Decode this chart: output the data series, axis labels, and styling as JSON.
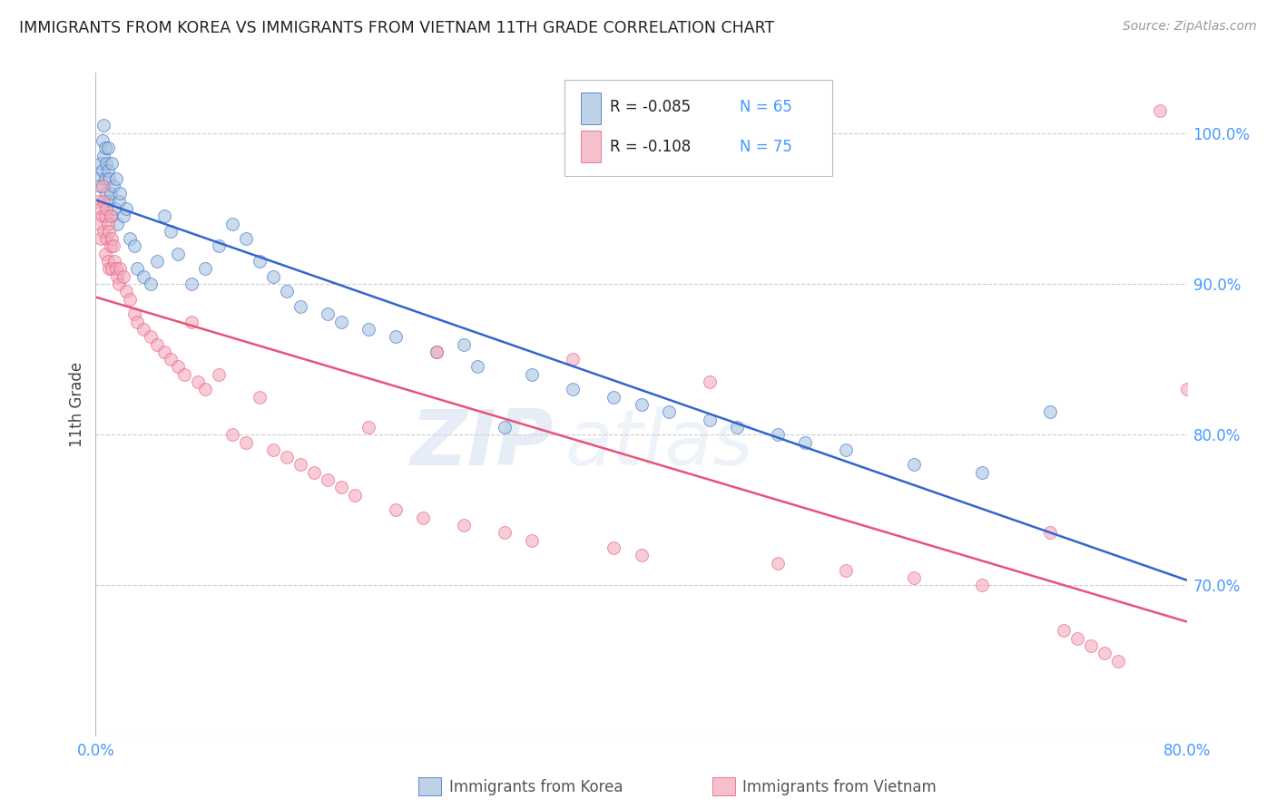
{
  "title": "IMMIGRANTS FROM KOREA VS IMMIGRANTS FROM VIETNAM 11TH GRADE CORRELATION CHART",
  "source": "Source: ZipAtlas.com",
  "ylabel": "11th Grade",
  "xmin": 0.0,
  "xmax": 80.0,
  "ymin": 60.0,
  "ymax": 104.0,
  "yticks": [
    70.0,
    80.0,
    90.0,
    100.0
  ],
  "ytick_labels": [
    "70.0%",
    "80.0%",
    "90.0%",
    "100.0%"
  ],
  "korea_color": "#A8C4E0",
  "vietnam_color": "#F4AABB",
  "korea_R": -0.085,
  "korea_N": 65,
  "vietnam_R": -0.108,
  "vietnam_N": 75,
  "trendline_korea_color": "#3366CC",
  "trendline_vietnam_color": "#E8537A",
  "watermark_zip": "ZIP",
  "watermark_atlas": "atlas",
  "legend_korea": "Immigrants from Korea",
  "legend_vietnam": "Immigrants from Vietnam",
  "korea_x": [
    0.2,
    0.3,
    0.4,
    0.5,
    0.5,
    0.6,
    0.6,
    0.7,
    0.7,
    0.8,
    0.8,
    0.9,
    0.9,
    1.0,
    1.0,
    1.1,
    1.2,
    1.2,
    1.3,
    1.4,
    1.5,
    1.6,
    1.7,
    1.8,
    2.0,
    2.2,
    2.5,
    2.8,
    3.0,
    3.5,
    4.0,
    4.5,
    5.0,
    5.5,
    6.0,
    7.0,
    8.0,
    9.0,
    10.0,
    11.0,
    12.0,
    13.0,
    14.0,
    15.0,
    17.0,
    18.0,
    20.0,
    22.0,
    25.0,
    27.0,
    28.0,
    30.0,
    32.0,
    35.0,
    38.0,
    40.0,
    42.0,
    45.0,
    47.0,
    50.0,
    52.0,
    55.0,
    60.0,
    65.0,
    70.0
  ],
  "korea_y": [
    97.0,
    96.5,
    98.0,
    97.5,
    99.5,
    98.5,
    100.5,
    97.0,
    99.0,
    98.0,
    96.0,
    97.5,
    99.0,
    95.5,
    97.0,
    96.0,
    98.0,
    94.5,
    96.5,
    95.0,
    97.0,
    94.0,
    95.5,
    96.0,
    94.5,
    95.0,
    93.0,
    92.5,
    91.0,
    90.5,
    90.0,
    91.5,
    94.5,
    93.5,
    92.0,
    90.0,
    91.0,
    92.5,
    94.0,
    93.0,
    91.5,
    90.5,
    89.5,
    88.5,
    88.0,
    87.5,
    87.0,
    86.5,
    85.5,
    86.0,
    84.5,
    80.5,
    84.0,
    83.0,
    82.5,
    82.0,
    81.5,
    81.0,
    80.5,
    80.0,
    79.5,
    79.0,
    78.0,
    77.5,
    81.5
  ],
  "vietnam_x": [
    0.2,
    0.3,
    0.4,
    0.4,
    0.5,
    0.5,
    0.6,
    0.6,
    0.7,
    0.7,
    0.8,
    0.8,
    0.9,
    0.9,
    1.0,
    1.0,
    1.1,
    1.1,
    1.2,
    1.2,
    1.3,
    1.4,
    1.5,
    1.6,
    1.7,
    1.8,
    2.0,
    2.2,
    2.5,
    2.8,
    3.0,
    3.5,
    4.0,
    4.5,
    5.0,
    5.5,
    6.0,
    6.5,
    7.0,
    7.5,
    8.0,
    9.0,
    10.0,
    11.0,
    12.0,
    13.0,
    14.0,
    15.0,
    16.0,
    17.0,
    18.0,
    19.0,
    20.0,
    22.0,
    24.0,
    25.0,
    27.0,
    30.0,
    32.0,
    35.0,
    38.0,
    40.0,
    45.0,
    50.0,
    55.0,
    60.0,
    65.0,
    70.0,
    71.0,
    72.0,
    73.0,
    74.0,
    75.0,
    78.0,
    80.0
  ],
  "vietnam_y": [
    95.5,
    94.0,
    95.0,
    93.0,
    96.5,
    94.5,
    95.5,
    93.5,
    94.5,
    92.0,
    95.0,
    93.0,
    94.0,
    91.5,
    93.5,
    91.0,
    94.5,
    92.5,
    93.0,
    91.0,
    92.5,
    91.5,
    91.0,
    90.5,
    90.0,
    91.0,
    90.5,
    89.5,
    89.0,
    88.0,
    87.5,
    87.0,
    86.5,
    86.0,
    85.5,
    85.0,
    84.5,
    84.0,
    87.5,
    83.5,
    83.0,
    84.0,
    80.0,
    79.5,
    82.5,
    79.0,
    78.5,
    78.0,
    77.5,
    77.0,
    76.5,
    76.0,
    80.5,
    75.0,
    74.5,
    85.5,
    74.0,
    73.5,
    73.0,
    85.0,
    72.5,
    72.0,
    83.5,
    71.5,
    71.0,
    70.5,
    70.0,
    73.5,
    67.0,
    66.5,
    66.0,
    65.5,
    65.0,
    101.5,
    83.0
  ]
}
